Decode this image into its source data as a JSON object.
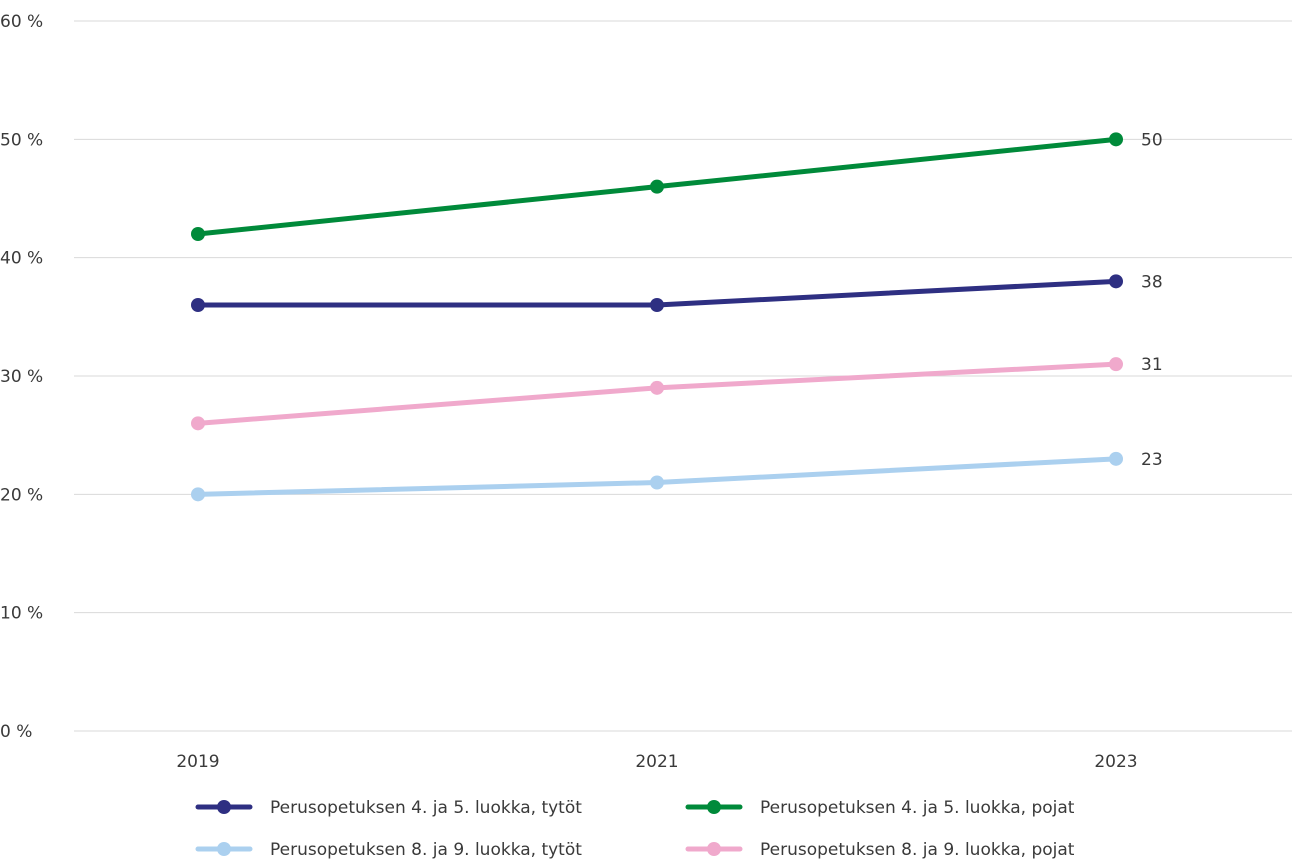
{
  "chart_data": {
    "type": "line",
    "x": [
      "2019",
      "2021",
      "2023"
    ],
    "ylim": [
      0,
      60
    ],
    "yticks": [
      0,
      10,
      20,
      30,
      40,
      50,
      60
    ],
    "ytick_labels": [
      "0 %",
      "10 %",
      "20 %",
      "30 %",
      "40 %",
      "50 %",
      "60 %"
    ],
    "grid": true,
    "legend_position": "bottom",
    "series": [
      {
        "name": "Perusopetuksen 4. ja 5. luokka, tytöt",
        "values": [
          36,
          36,
          38
        ],
        "end_label": "38",
        "color": "#2e2f82"
      },
      {
        "name": "Perusopetuksen 4. ja 5. luokka, pojat",
        "values": [
          42,
          46,
          50
        ],
        "end_label": "50",
        "color": "#008a3a"
      },
      {
        "name": "Perusopetuksen 8. ja 9. luokka, tytöt",
        "values": [
          20,
          21,
          23
        ],
        "end_label": "23",
        "color": "#abd0ef"
      },
      {
        "name": "Perusopetuksen 8. ja 9. luokka, pojat",
        "values": [
          26,
          29,
          31
        ],
        "end_label": "31",
        "color": "#f0a9cc"
      }
    ]
  }
}
